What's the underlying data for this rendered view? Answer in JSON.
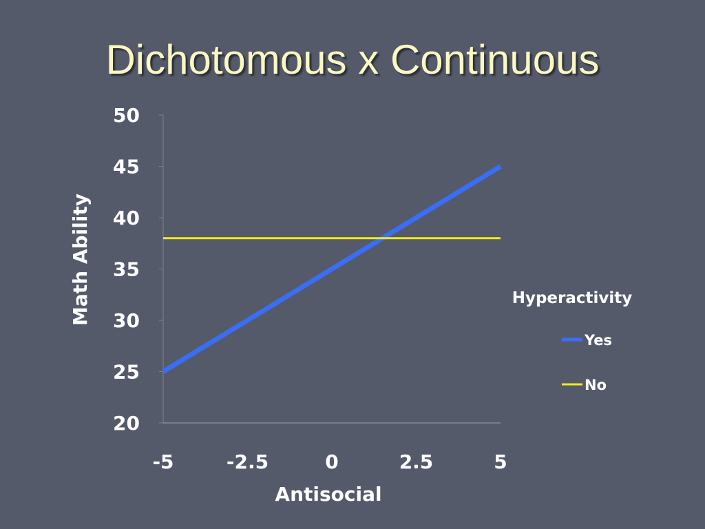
{
  "slide": {
    "title": "Dichotomous x Continuous"
  },
  "chart_data": {
    "type": "line",
    "xlabel": "Antisocial",
    "ylabel": "Math Ability",
    "x": [
      -5,
      5
    ],
    "x_ticks": [
      "-5",
      "-2.5",
      "0",
      "2.5",
      "5"
    ],
    "y_ticks": [
      "20",
      "25",
      "30",
      "35",
      "40",
      "45",
      "50"
    ],
    "xlim": [
      -5,
      5
    ],
    "ylim": [
      20,
      50
    ],
    "grid": false,
    "legend_title": "Hyperactivity",
    "legend_position": "right",
    "series": [
      {
        "name": "Yes",
        "x": [
          -5,
          5
        ],
        "values": [
          25,
          45
        ],
        "color": "#3a6ef5"
      },
      {
        "name": "No",
        "x": [
          -5,
          5
        ],
        "values": [
          38,
          38
        ],
        "color": "#f2ea1c"
      }
    ]
  }
}
